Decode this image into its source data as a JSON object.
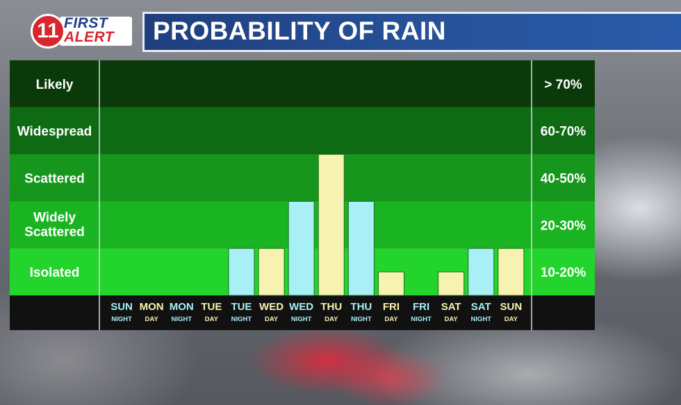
{
  "header": {
    "logo_number": "11",
    "logo_line1": "FIRST",
    "logo_line2": "ALERT",
    "title": "PROBABILITY OF RAIN"
  },
  "colors": {
    "night_bar": "#a8f0f6",
    "day_bar": "#f8f2b0",
    "night_label": "#a8f0f6",
    "day_label": "#f8f2b0",
    "band_colors": [
      "#0a3a0a",
      "#0f6a14",
      "#16961d",
      "#1ab422",
      "#22d42c"
    ]
  },
  "chart_data": {
    "type": "bar",
    "categories_top": [
      "SUN",
      "MON",
      "MON",
      "TUE",
      "TUE",
      "WED",
      "WED",
      "THU",
      "THU",
      "FRI",
      "FRI",
      "SAT",
      "SAT",
      "SUN"
    ],
    "categories_bottom": [
      "NIGHT",
      "DAY",
      "NIGHT",
      "DAY",
      "NIGHT",
      "DAY",
      "NIGHT",
      "DAY",
      "NIGHT",
      "DAY",
      "NIGHT",
      "DAY",
      "NIGHT",
      "DAY"
    ],
    "period": [
      "night",
      "day",
      "night",
      "day",
      "night",
      "day",
      "night",
      "day",
      "night",
      "day",
      "night",
      "day",
      "night",
      "day"
    ],
    "values": [
      0,
      0,
      0,
      0,
      10,
      10,
      30,
      50,
      30,
      5,
      0,
      5,
      10,
      10
    ],
    "bands": [
      {
        "label": "Likely",
        "range": "> 70%"
      },
      {
        "label": "Widespread",
        "range": "60-70%"
      },
      {
        "label": "Scattered",
        "range": "40-50%"
      },
      {
        "label": "Widely Scattered",
        "range": "20-30%"
      },
      {
        "label": "Isolated",
        "range": "10-20%"
      }
    ],
    "band_edges": [
      100,
      70,
      50,
      30,
      10,
      0
    ],
    "ylim": [
      0,
      100
    ],
    "legend": "none",
    "grid": false
  }
}
